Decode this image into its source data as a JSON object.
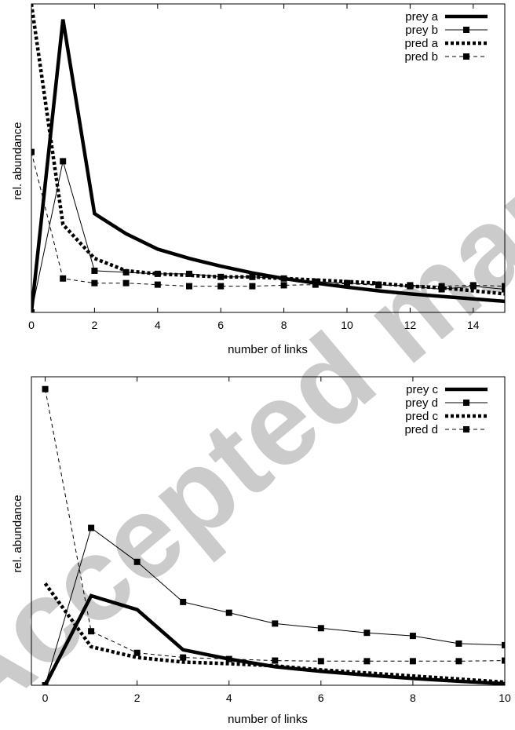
{
  "chart_data": [
    {
      "type": "line",
      "xlabel": "number of links",
      "ylabel": "rel. abundance",
      "xlim": [
        0,
        15
      ],
      "ylim": [
        0,
        1
      ],
      "x_ticks": [
        "0",
        "2",
        "4",
        "6",
        "8",
        "10",
        "12",
        "14"
      ],
      "x_tick_values": [
        0,
        2,
        4,
        6,
        8,
        10,
        12,
        14
      ],
      "legend_position": "top-right",
      "grid": false,
      "series": [
        {
          "name": "prey a",
          "style": "thick-solid",
          "x": [
            0,
            1,
            2,
            3,
            4,
            5,
            6,
            7,
            8,
            9,
            10,
            11,
            12,
            13,
            14,
            15
          ],
          "values": [
            0.0,
            0.95,
            0.32,
            0.255,
            0.205,
            0.175,
            0.15,
            0.128,
            0.11,
            0.095,
            0.082,
            0.07,
            0.06,
            0.052,
            0.044,
            0.036
          ]
        },
        {
          "name": "prey b",
          "style": "thin-solid-squares",
          "x": [
            0,
            1,
            2,
            3,
            4,
            5,
            6,
            7,
            8,
            9,
            10,
            11,
            12,
            13,
            14,
            15
          ],
          "values": [
            0.0,
            0.49,
            0.135,
            0.13,
            0.125,
            0.125,
            0.115,
            0.115,
            0.11,
            0.1,
            0.095,
            0.09,
            0.085,
            0.075,
            0.085,
            0.075
          ]
        },
        {
          "name": "pred a",
          "style": "thick-dotted",
          "x": [
            0,
            1,
            2,
            3,
            4,
            5,
            6,
            7,
            8,
            9,
            10,
            11,
            12,
            13,
            14,
            15
          ],
          "values": [
            1.0,
            0.285,
            0.175,
            0.135,
            0.125,
            0.12,
            0.115,
            0.115,
            0.11,
            0.105,
            0.1,
            0.095,
            0.085,
            0.08,
            0.07,
            0.06
          ]
        },
        {
          "name": "pred b",
          "style": "thin-dashed-squares",
          "x": [
            0,
            1,
            2,
            3,
            4,
            5,
            6,
            7,
            8,
            9,
            10,
            11,
            12,
            13,
            14,
            15
          ],
          "values": [
            0.52,
            0.11,
            0.095,
            0.095,
            0.09,
            0.085,
            0.085,
            0.085,
            0.088,
            0.09,
            0.093,
            0.088,
            0.088,
            0.085,
            0.088,
            0.085
          ]
        }
      ]
    },
    {
      "type": "line",
      "xlabel": "number of links",
      "ylabel": "rel. abundance",
      "xlim": [
        -0.3,
        10
      ],
      "ylim": [
        0,
        1
      ],
      "x_ticks": [
        "0",
        "2",
        "4",
        "6",
        "8",
        "10"
      ],
      "x_tick_values": [
        0,
        2,
        4,
        6,
        8,
        10
      ],
      "legend_position": "top-right",
      "grid": false,
      "series": [
        {
          "name": "prey c",
          "style": "thick-solid",
          "x": [
            0,
            1,
            2,
            3,
            4,
            5,
            6,
            7,
            8,
            9,
            10
          ],
          "values": [
            0.0,
            0.29,
            0.245,
            0.115,
            0.085,
            0.06,
            0.045,
            0.033,
            0.022,
            0.013,
            0.005
          ]
        },
        {
          "name": "prey d",
          "style": "thin-solid-squares",
          "x": [
            0,
            1,
            2,
            3,
            4,
            5,
            6,
            7,
            8,
            9,
            10
          ],
          "values": [
            0.0,
            0.51,
            0.4,
            0.27,
            0.235,
            0.2,
            0.185,
            0.17,
            0.16,
            0.135,
            0.13
          ]
        },
        {
          "name": "pred c",
          "style": "thick-dotted",
          "x": [
            0,
            1,
            2,
            3,
            4,
            5,
            6,
            7,
            8,
            9,
            10
          ],
          "values": [
            0.33,
            0.125,
            0.09,
            0.075,
            0.07,
            0.063,
            0.05,
            0.04,
            0.03,
            0.02,
            0.01
          ]
        },
        {
          "name": "pred d",
          "style": "thin-dashed-squares",
          "x": [
            0,
            1,
            2,
            3,
            4,
            5,
            6,
            7,
            8,
            9,
            10
          ],
          "values": [
            0.96,
            0.175,
            0.105,
            0.09,
            0.085,
            0.08,
            0.078,
            0.078,
            0.078,
            0.078,
            0.08
          ]
        }
      ]
    }
  ],
  "watermark": {
    "text": "Accepted manuscript"
  }
}
